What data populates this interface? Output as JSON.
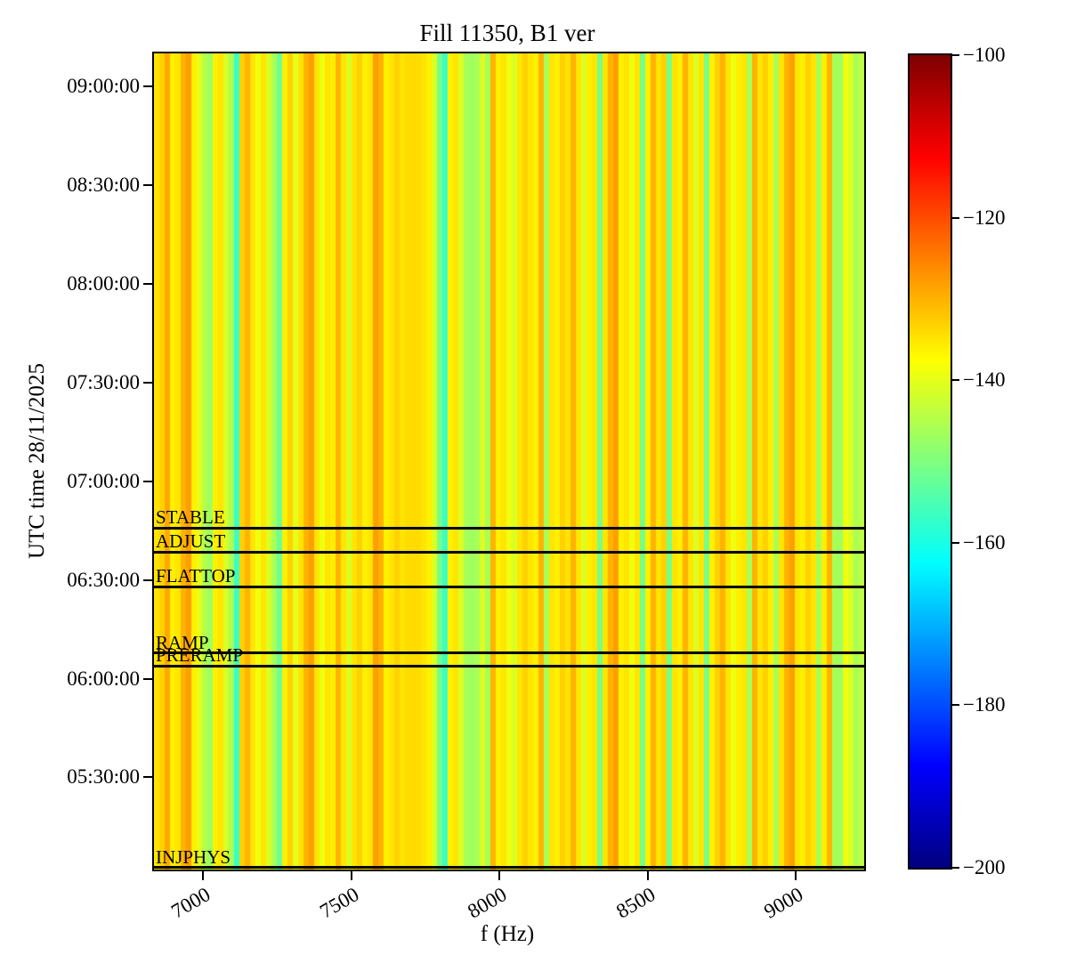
{
  "figure": {
    "background": "#ffffff",
    "frame_color": "#000000"
  },
  "chart_data": {
    "type": "heatmap",
    "title": "Fill 11350, B1 ver",
    "xlabel": "f (Hz)",
    "ylabel": "UTC time 28/11/2025",
    "x_range": [
      6835,
      9230
    ],
    "x_ticks": [
      7000,
      7500,
      8000,
      8500,
      9000
    ],
    "y_axis": {
      "top_time": "09:10:00",
      "bottom_time": "05:02:00",
      "date": "28/11/2025"
    },
    "y_ticks": [
      "09:00:00",
      "08:30:00",
      "08:00:00",
      "07:30:00",
      "07:00:00",
      "06:30:00",
      "06:00:00",
      "05:30:00"
    ],
    "colorbar": {
      "min": -200,
      "max": -100,
      "ticks": [
        -100,
        -120,
        -140,
        -160,
        -180,
        -200
      ],
      "colormap": "jet"
    },
    "beam_modes": [
      {
        "label": "STABLE",
        "time": "06:45:50"
      },
      {
        "label": "ADJUST",
        "time": "06:38:30"
      },
      {
        "label": "FLATTOP",
        "time": "06:28:00"
      },
      {
        "label": "RAMP",
        "time": "06:07:50"
      },
      {
        "label": "PRERAMP",
        "time": "06:03:50"
      },
      {
        "label": "INJPHYS",
        "time": "05:02:30"
      }
    ],
    "mode_line_color": "#000000",
    "spectrum_db": [
      -135,
      -133,
      -129,
      -136,
      -135,
      -130,
      -128,
      -136,
      -140,
      -145,
      -147,
      -136,
      -135,
      -141,
      -146,
      -157,
      -133,
      -130,
      -135,
      -139,
      -135,
      -141,
      -146,
      -152,
      -136,
      -133,
      -140,
      -135,
      -130,
      -128,
      -135,
      -139,
      -135,
      -136,
      -130,
      -135,
      -141,
      -135,
      -133,
      -136,
      -135,
      -128,
      -130,
      -136,
      -135,
      -133,
      -135,
      -134,
      -134,
      -134,
      -135,
      -136,
      -141,
      -151,
      -157,
      -136,
      -135,
      -141,
      -146,
      -147,
      -146,
      -141,
      -146,
      -130,
      -136,
      -135,
      -139,
      -141,
      -135,
      -133,
      -135,
      -136,
      -130,
      -146,
      -135,
      -136,
      -133,
      -135,
      -130,
      -135,
      -141,
      -136,
      -135,
      -151,
      -135,
      -130,
      -128,
      -136,
      -135,
      -139,
      -135,
      -151,
      -136,
      -130,
      -135,
      -133,
      -151,
      -135,
      -136,
      -130,
      -135,
      -141,
      -135,
      -151,
      -136,
      -133,
      -130,
      -135,
      -139,
      -136,
      -135,
      -146,
      -130,
      -135,
      -133,
      -136,
      -146,
      -135,
      -130,
      -128,
      -135,
      -136,
      -133,
      -135,
      -146,
      -136,
      -130,
      -146,
      -147,
      -139,
      -141,
      -146,
      -144
    ]
  }
}
